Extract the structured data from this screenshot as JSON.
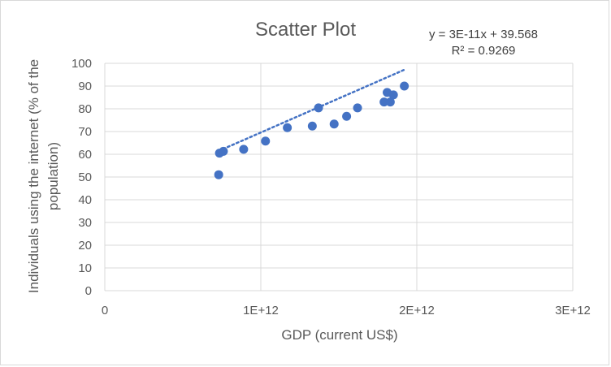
{
  "chart_data": {
    "type": "scatter",
    "title": "Scatter Plot",
    "xlabel": "GDP (current US$)",
    "ylabel_lines": [
      "Individuals using the internet (% of the",
      "population)"
    ],
    "xlim": [
      0,
      3000000000000
    ],
    "ylim": [
      0,
      100
    ],
    "xticks": [
      0,
      1000000000000,
      2000000000000,
      3000000000000
    ],
    "xtick_labels": [
      "0",
      "1E+12",
      "2E+12",
      "3E+12"
    ],
    "yticks": [
      0,
      10,
      20,
      30,
      40,
      50,
      60,
      70,
      80,
      90,
      100
    ],
    "ytick_labels": [
      "0",
      "10",
      "20",
      "30",
      "40",
      "50",
      "60",
      "70",
      "80",
      "90",
      "100"
    ],
    "grid": true,
    "legend": "none",
    "series": [
      {
        "color": "#4472c4",
        "points": [
          {
            "x": 730000000000,
            "y": 51.0
          },
          {
            "x": 735000000000,
            "y": 60.5
          },
          {
            "x": 760000000000,
            "y": 61.3
          },
          {
            "x": 890000000000,
            "y": 62.2
          },
          {
            "x": 1030000000000,
            "y": 65.8
          },
          {
            "x": 1170000000000,
            "y": 71.7
          },
          {
            "x": 1330000000000,
            "y": 72.4
          },
          {
            "x": 1370000000000,
            "y": 80.4
          },
          {
            "x": 1470000000000,
            "y": 73.3
          },
          {
            "x": 1550000000000,
            "y": 76.7
          },
          {
            "x": 1620000000000,
            "y": 80.4
          },
          {
            "x": 1790000000000,
            "y": 83.0
          },
          {
            "x": 1810000000000,
            "y": 87.2
          },
          {
            "x": 1830000000000,
            "y": 83.0
          },
          {
            "x": 1850000000000,
            "y": 86.1
          },
          {
            "x": 1920000000000,
            "y": 90.0
          }
        ]
      }
    ],
    "trendline": {
      "type": "linear",
      "style": "dotted",
      "color": "#4472c4",
      "x_start": 730000000000,
      "x_end": 1920000000000,
      "slope": 3e-11,
      "intercept": 39.568,
      "equation_label": "y = 3E-11x + 39.568",
      "r2_label": "R² = 0.9269"
    }
  }
}
